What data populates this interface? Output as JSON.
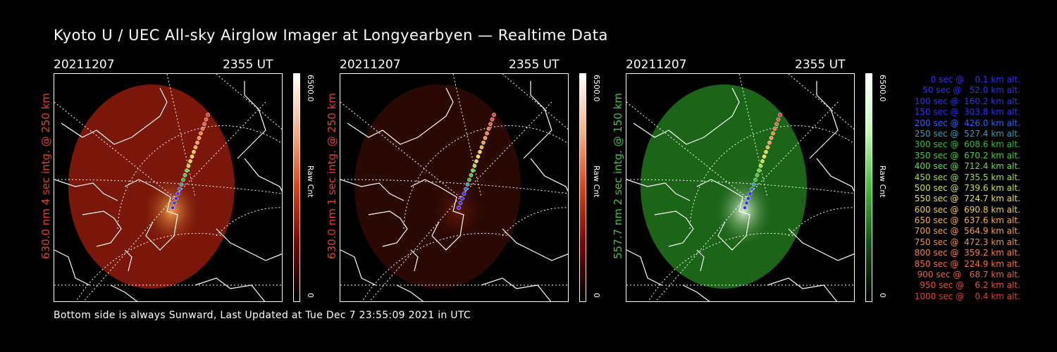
{
  "title": "Kyoto U / UEC All-sky Airglow Imager at Longyearbyen — Realtime Data",
  "footer": "Bottom side is always Sunward, Last Updated at Tue Dec  7 23:55:09 2021 in UTC",
  "panels": [
    {
      "date": "20211207",
      "time": "2355 UT",
      "ylabel": "630.0 nm 4 sec intg. @ 250 km",
      "label_color": "#e8402a",
      "cbar_top": "6500.0",
      "cbar_mid": "Raw Cnt",
      "cbar_bot": "0",
      "image_color": "#7a160a",
      "glow_color": "#ffb050"
    },
    {
      "date": "20211207",
      "time": "2355 UT",
      "ylabel": "630.0 nm 1 sec intg. @ 250 km",
      "label_color": "#e8402a",
      "cbar_top": "6500.0",
      "cbar_mid": "Raw Cnt",
      "cbar_bot": "0",
      "image_color": "#2a0804",
      "glow_color": "#6a1a08"
    },
    {
      "date": "20211207",
      "time": "2355 UT",
      "ylabel": "557.7 nm 2 sec intg. @ 150 km",
      "label_color": "#40c840",
      "cbar_top": "6500.0",
      "cbar_mid": "Raw Cnt",
      "cbar_bot": "0",
      "image_color": "#1c6418",
      "glow_color": "#e8ffe0"
    }
  ],
  "legend": [
    {
      "text": "0 sec @    0.1 km alt.",
      "color": "#3030ff"
    },
    {
      "text": "50 sec @   52.0 km alt.",
      "color": "#3030ff"
    },
    {
      "text": "100 sec @  160.2 km alt.",
      "color": "#3030ff"
    },
    {
      "text": "150 sec @  303.8 km alt.",
      "color": "#3030ff"
    },
    {
      "text": "200 sec @  426.0 km alt.",
      "color": "#3060ff"
    },
    {
      "text": "250 sec @  527.4 km alt.",
      "color": "#30a0c0"
    },
    {
      "text": "300 sec @  608.6 km alt.",
      "color": "#30c040"
    },
    {
      "text": "350 sec @  670.2 km alt.",
      "color": "#40d040"
    },
    {
      "text": "400 sec @  712.4 km alt.",
      "color": "#60e040"
    },
    {
      "text": "450 sec @  735.5 km alt.",
      "color": "#a0e040"
    },
    {
      "text": "500 sec @  739.6 km alt.",
      "color": "#d0e040"
    },
    {
      "text": "550 sec @  724.7 km alt.",
      "color": "#f0e040"
    },
    {
      "text": "600 sec @  690.8 km alt.",
      "color": "#f8d040"
    },
    {
      "text": "650 sec @  637.6 km alt.",
      "color": "#f8b040"
    },
    {
      "text": "700 sec @  564.9 km alt.",
      "color": "#f8a040"
    },
    {
      "text": "750 sec @  472.3 km alt.",
      "color": "#f89040"
    },
    {
      "text": "800 sec @  359.2 km alt.",
      "color": "#f88040"
    },
    {
      "text": "850 sec @  224.9 km alt.",
      "color": "#f87040"
    },
    {
      "text": "900 sec @   68.7 km alt.",
      "color": "#f06040"
    },
    {
      "text": "950 sec @    6.2 km alt.",
      "color": "#e85040"
    },
    {
      "text": "1000 sec @    0.4 km alt.",
      "color": "#e04040"
    }
  ]
}
